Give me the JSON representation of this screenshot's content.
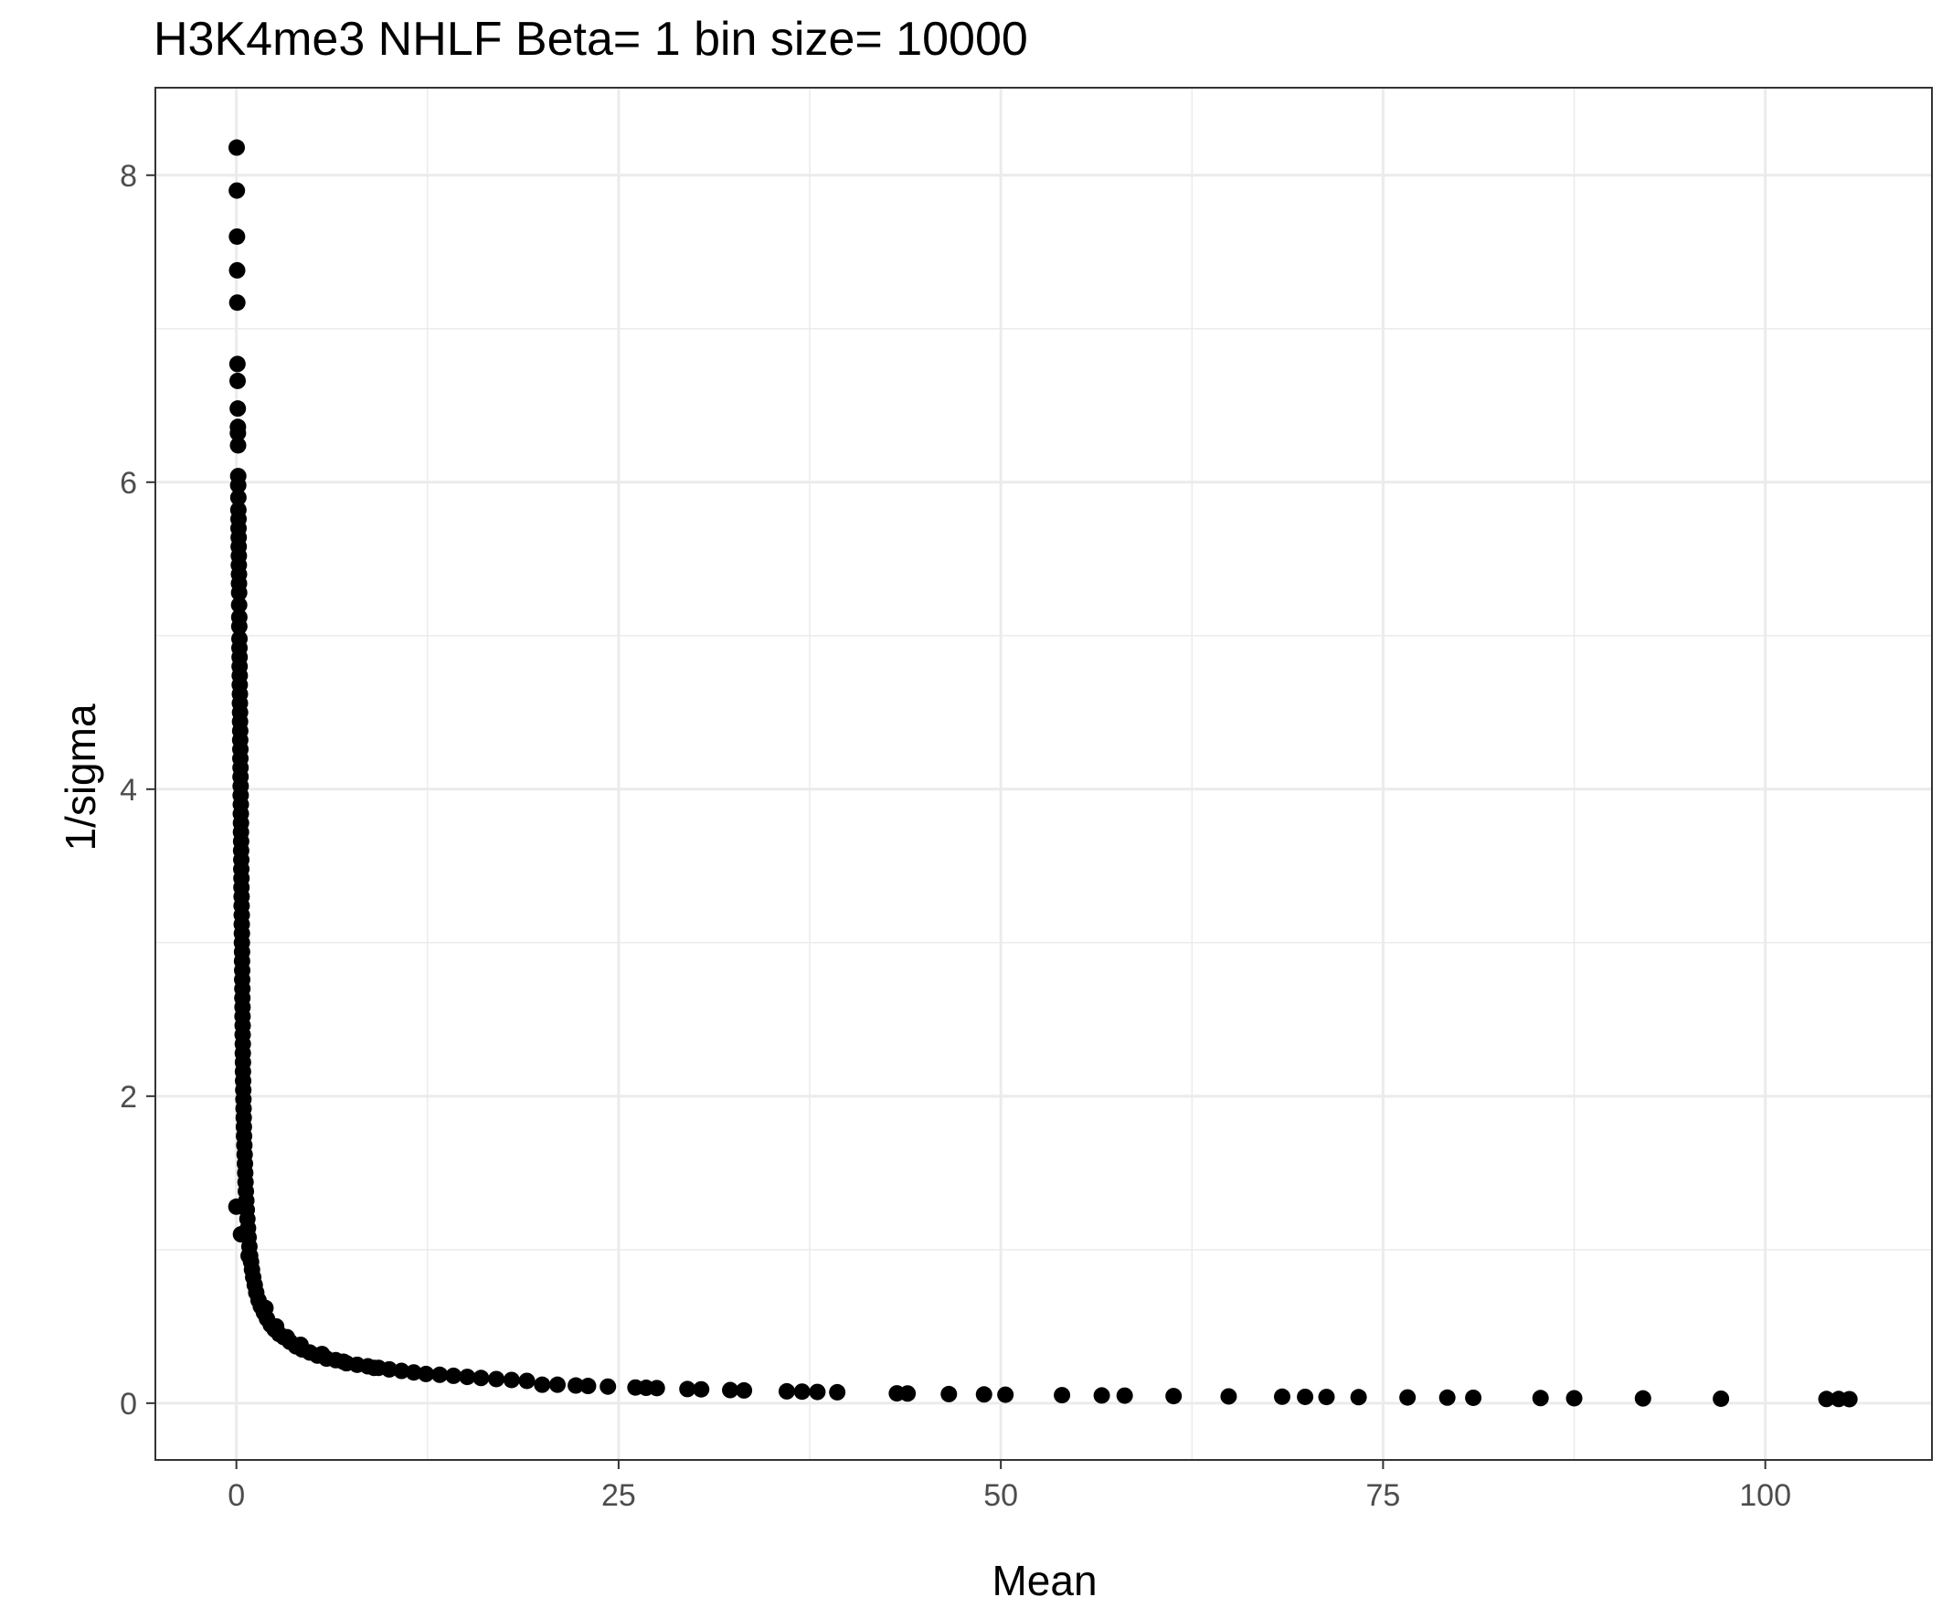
{
  "chart_data": {
    "type": "scatter",
    "title": "H3K4me3 NHLF  Beta=  1  bin size=  10000",
    "xlabel": "Mean",
    "ylabel": "1/sigma",
    "xlim": [
      -5.3,
      110.9
    ],
    "ylim": [
      -0.37,
      8.57
    ],
    "x_ticks": [
      0,
      25,
      50,
      75,
      100
    ],
    "x_tick_labels": [
      "0",
      "25",
      "50",
      "75",
      "100"
    ],
    "x_minor": [
      12.5,
      37.5,
      62.5,
      87.5
    ],
    "y_ticks": [
      0,
      2,
      4,
      6,
      8
    ],
    "y_tick_labels": [
      "0",
      "2",
      "4",
      "6",
      "8"
    ],
    "y_minor": [
      1,
      3,
      5,
      7
    ],
    "grid": true,
    "theme": "bw",
    "point_color": "#000000",
    "points": [
      [
        0.02,
        8.18
      ],
      [
        0.03,
        7.9
      ],
      [
        0.04,
        7.6
      ],
      [
        0.05,
        7.38
      ],
      [
        0.06,
        7.17
      ],
      [
        0.07,
        6.77
      ],
      [
        0.08,
        6.66
      ],
      [
        0.09,
        6.48
      ],
      [
        0.1,
        6.36
      ],
      [
        0.1,
        6.32
      ],
      [
        0.11,
        6.24
      ],
      [
        0.12,
        6.04
      ],
      [
        0.12,
        5.98
      ],
      [
        0.13,
        5.9
      ],
      [
        0.13,
        5.82
      ],
      [
        0.14,
        5.76
      ],
      [
        0.14,
        5.7
      ],
      [
        0.15,
        5.64
      ],
      [
        0.15,
        5.58
      ],
      [
        0.16,
        5.52
      ],
      [
        0.16,
        5.46
      ],
      [
        0.17,
        5.4
      ],
      [
        0.17,
        5.34
      ],
      [
        0.18,
        5.28
      ],
      [
        0.18,
        5.2
      ],
      [
        0.19,
        5.12
      ],
      [
        0.19,
        5.06
      ],
      [
        0.2,
        4.98
      ],
      [
        0.2,
        4.92
      ],
      [
        0.21,
        4.86
      ],
      [
        0.21,
        4.8
      ],
      [
        0.22,
        4.74
      ],
      [
        0.22,
        4.68
      ],
      [
        0.23,
        4.62
      ],
      [
        0.23,
        4.56
      ],
      [
        0.24,
        4.5
      ],
      [
        0.24,
        4.44
      ],
      [
        0.25,
        4.38
      ],
      [
        0.25,
        4.32
      ],
      [
        0.26,
        4.26
      ],
      [
        0.26,
        4.2
      ],
      [
        0.27,
        4.14
      ],
      [
        0.27,
        4.08
      ],
      [
        0.28,
        4.02
      ],
      [
        0.28,
        3.96
      ],
      [
        0.29,
        3.9
      ],
      [
        0.29,
        3.84
      ],
      [
        0.3,
        3.78
      ],
      [
        0.3,
        3.72
      ],
      [
        0.31,
        3.66
      ],
      [
        0.31,
        3.6
      ],
      [
        0.32,
        3.54
      ],
      [
        0.32,
        3.48
      ],
      [
        0.33,
        3.42
      ],
      [
        0.33,
        3.36
      ],
      [
        0.34,
        3.3
      ],
      [
        0.34,
        3.24
      ],
      [
        0.35,
        3.18
      ],
      [
        0.35,
        3.12
      ],
      [
        0.36,
        3.06
      ],
      [
        0.36,
        3.0
      ],
      [
        0.37,
        2.94
      ],
      [
        0.37,
        2.88
      ],
      [
        0.38,
        2.82
      ],
      [
        0.38,
        2.76
      ],
      [
        0.39,
        2.7
      ],
      [
        0.39,
        2.64
      ],
      [
        0.4,
        2.58
      ],
      [
        0.4,
        2.52
      ],
      [
        0.41,
        2.46
      ],
      [
        0.41,
        2.4
      ],
      [
        0.42,
        2.34
      ],
      [
        0.42,
        2.28
      ],
      [
        0.43,
        2.22
      ],
      [
        0.43,
        2.16
      ],
      [
        0.44,
        2.1
      ],
      [
        0.45,
        2.04
      ],
      [
        0.46,
        1.98
      ],
      [
        0.47,
        1.92
      ],
      [
        0.48,
        1.86
      ],
      [
        0.49,
        1.8
      ],
      [
        0.5,
        1.74
      ],
      [
        0.52,
        1.68
      ],
      [
        0.54,
        1.62
      ],
      [
        0.56,
        1.56
      ],
      [
        0.58,
        1.5
      ],
      [
        0.6,
        1.44
      ],
      [
        0.62,
        1.38
      ],
      [
        0.65,
        1.32
      ],
      [
        0.68,
        1.26
      ],
      [
        0.72,
        1.2
      ],
      [
        0.76,
        1.14
      ],
      [
        0.8,
        1.08
      ],
      [
        0.85,
        1.02
      ],
      [
        0.9,
        0.96
      ],
      [
        0.96,
        0.92
      ],
      [
        1.02,
        0.87
      ],
      [
        1.1,
        0.82
      ],
      [
        1.2,
        0.77
      ],
      [
        1.3,
        0.72
      ],
      [
        1.45,
        0.67
      ],
      [
        1.6,
        0.63
      ],
      [
        1.8,
        0.59
      ],
      [
        2.0,
        0.55
      ],
      [
        2.25,
        0.51
      ],
      [
        2.5,
        0.48
      ],
      [
        2.8,
        0.45
      ],
      [
        3.1,
        0.43
      ],
      [
        3.5,
        0.4
      ],
      [
        3.9,
        0.37
      ],
      [
        4.3,
        0.35
      ],
      [
        4.8,
        0.33
      ],
      [
        5.3,
        0.31
      ],
      [
        5.9,
        0.29
      ],
      [
        6.5,
        0.28
      ],
      [
        7.2,
        0.26
      ],
      [
        7.9,
        0.25
      ],
      [
        8.6,
        0.24
      ],
      [
        9.3,
        0.23
      ],
      [
        10.0,
        0.22
      ],
      [
        10.8,
        0.21
      ],
      [
        11.6,
        0.2
      ],
      [
        12.4,
        0.19
      ],
      [
        13.3,
        0.185
      ],
      [
        14.2,
        0.178
      ],
      [
        15.1,
        0.171
      ],
      [
        16.0,
        0.164
      ],
      [
        17.0,
        0.157
      ],
      [
        18.0,
        0.151
      ],
      [
        19.0,
        0.145
      ],
      [
        0.0,
        1.28
      ],
      [
        0.3,
        1.1
      ],
      [
        0.8,
        0.96
      ],
      [
        1.9,
        0.62
      ],
      [
        2.6,
        0.5
      ],
      [
        3.3,
        0.43
      ],
      [
        4.2,
        0.38
      ],
      [
        5.6,
        0.32
      ],
      [
        7.0,
        0.27
      ],
      [
        9.0,
        0.23
      ],
      [
        20.0,
        0.12
      ],
      [
        21.0,
        0.12
      ],
      [
        22.2,
        0.115
      ],
      [
        23.0,
        0.112
      ],
      [
        24.3,
        0.108
      ],
      [
        26.1,
        0.102
      ],
      [
        26.8,
        0.1
      ],
      [
        27.5,
        0.098
      ],
      [
        29.5,
        0.092
      ],
      [
        30.4,
        0.09
      ],
      [
        32.3,
        0.085
      ],
      [
        33.2,
        0.083
      ],
      [
        36.0,
        0.077
      ],
      [
        37.0,
        0.075
      ],
      [
        38.0,
        0.073
      ],
      [
        39.3,
        0.071
      ],
      [
        43.2,
        0.064
      ],
      [
        43.9,
        0.063
      ],
      [
        46.6,
        0.059
      ],
      [
        48.9,
        0.057
      ],
      [
        50.3,
        0.055
      ],
      [
        54.0,
        0.052
      ],
      [
        56.6,
        0.05
      ],
      [
        58.1,
        0.049
      ],
      [
        61.3,
        0.046
      ],
      [
        64.9,
        0.044
      ],
      [
        68.4,
        0.042
      ],
      [
        69.9,
        0.041
      ],
      [
        71.3,
        0.04
      ],
      [
        73.4,
        0.039
      ],
      [
        76.6,
        0.037
      ],
      [
        79.2,
        0.036
      ],
      [
        80.9,
        0.035
      ],
      [
        85.3,
        0.033
      ],
      [
        87.5,
        0.032
      ],
      [
        92.0,
        0.031
      ],
      [
        97.1,
        0.029
      ],
      [
        104.0,
        0.027
      ],
      [
        104.8,
        0.027
      ],
      [
        105.5,
        0.026
      ]
    ]
  }
}
